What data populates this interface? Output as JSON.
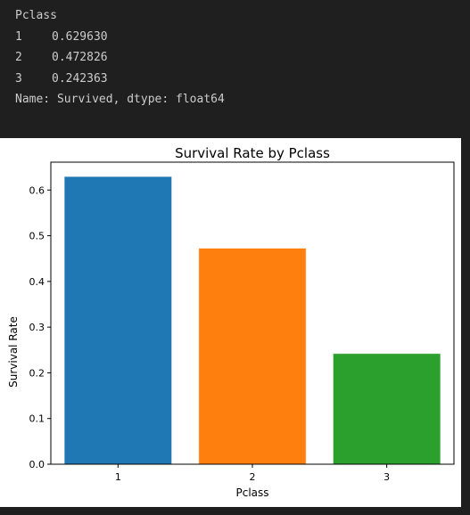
{
  "output": {
    "header": "Pclass",
    "rows": [
      {
        "index": "1",
        "value": "0.629630"
      },
      {
        "index": "2",
        "value": "0.472826"
      },
      {
        "index": "3",
        "value": "0.242363"
      }
    ],
    "footer": "Name: Survived, dtype: float64"
  },
  "chart_data": {
    "type": "bar",
    "title": "Survival Rate by Pclass",
    "xlabel": "Pclass",
    "ylabel": "Survival Rate",
    "categories": [
      "1",
      "2",
      "3"
    ],
    "values": [
      0.62963,
      0.472826,
      0.242363
    ],
    "colors": [
      "#1f77b4",
      "#ff7f0e",
      "#2ca02c"
    ],
    "ylim": [
      0,
      0.661
    ],
    "yticks": [
      0.0,
      0.1,
      0.2,
      0.3,
      0.4,
      0.5,
      0.6
    ],
    "ytick_labels": [
      "0.0",
      "0.1",
      "0.2",
      "0.3",
      "0.4",
      "0.5",
      "0.6"
    ],
    "grid": false,
    "legend": "none"
  }
}
